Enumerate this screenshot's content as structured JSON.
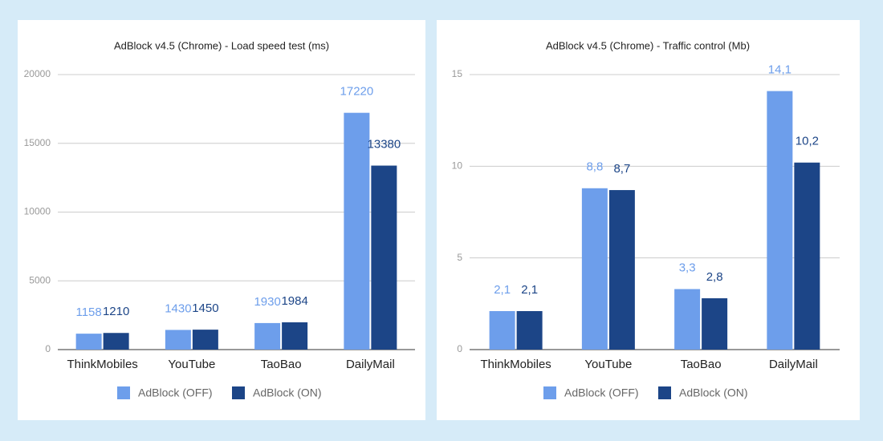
{
  "chart_data": [
    {
      "type": "bar",
      "title": "AdBlock v4.5 (Chrome) - Load speed test (ms)",
      "categories": [
        "ThinkMobiles",
        "YouTube",
        "TaoBao",
        "DailyMail"
      ],
      "series": [
        {
          "name": "AdBlock (OFF)",
          "color": "#6d9eeb",
          "values": [
            1158,
            1430,
            1930,
            17220
          ]
        },
        {
          "name": "AdBlock (ON)",
          "color": "#1c4587",
          "values": [
            1210,
            1450,
            1984,
            13380
          ]
        }
      ],
      "ylim": [
        0,
        20000
      ],
      "yticks": [
        0,
        5000,
        10000,
        15000,
        20000
      ],
      "grid": true,
      "legend": "bottom"
    },
    {
      "type": "bar",
      "title": "AdBlock v4.5 (Chrome) - Traffic control (Mb)",
      "categories": [
        "ThinkMobiles",
        "YouTube",
        "TaoBao",
        "DailyMail"
      ],
      "series": [
        {
          "name": "AdBlock (OFF)",
          "color": "#6d9eeb",
          "values": [
            2.1,
            8.8,
            3.3,
            14.1
          ],
          "value_labels": [
            "2,1",
            "8,8",
            "3,3",
            "14,1"
          ]
        },
        {
          "name": "AdBlock (ON)",
          "color": "#1c4587",
          "values": [
            2.1,
            8.7,
            2.8,
            10.2
          ],
          "value_labels": [
            "2,1",
            "8,7",
            "2,8",
            "10,2"
          ]
        }
      ],
      "ylim": [
        0,
        15
      ],
      "yticks": [
        0,
        5,
        10,
        15
      ],
      "grid": true,
      "legend": "bottom"
    }
  ]
}
